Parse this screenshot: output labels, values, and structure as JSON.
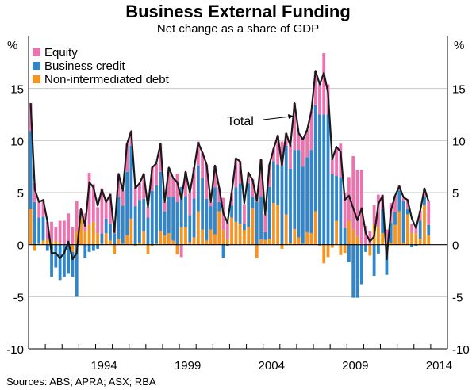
{
  "chart_data": {
    "type": "bar",
    "stacked": true,
    "title": "Business External Funding",
    "subtitle": "Net change as a share of GDP",
    "ylabel_left": "%",
    "ylabel_right": "%",
    "ylim": [
      -10,
      20
    ],
    "yticks": [
      -10,
      -5,
      0,
      5,
      10,
      15
    ],
    "xlim": [
      1990,
      2015
    ],
    "xtick_labels": [
      "1994",
      "1999",
      "2004",
      "2009",
      "2014"
    ],
    "grid": true,
    "legend_position": "top-left",
    "frequency": "quarterly",
    "start": "1990 Q1",
    "end": "2013 Q4",
    "source": "Sources: ABS; APRA; ASX; RBA",
    "annotation": "Total",
    "colors": {
      "equity": "#ef72b0",
      "credit": "#2f86cb",
      "debt": "#f7941d",
      "total": "#1a1a1a"
    },
    "series": [
      {
        "name": "Equity",
        "key": "equity",
        "values": [
          2.7,
          1.8,
          1.6,
          1.6,
          1.7,
          1.9,
          1.3,
          2.1,
          2.3,
          3.0,
          1.7,
          2.9,
          0.8,
          1.7,
          5.0,
          3.6,
          2.5,
          4.3,
          1.8,
          2.9,
          0.9,
          2.2,
          1.45,
          2.7,
          1.4,
          1.8,
          1.6,
          2.4,
          1.0,
          2.3,
          2.1,
          2.7,
          0.9,
          2.8,
          1.8,
          2.7,
          -1.2,
          2.35,
          2.15,
          3.0,
          2.3,
          2.45,
          3.3,
          0.4,
          2.1,
          1.4,
          3.1,
          1.7,
          1.2,
          2.8,
          2.1,
          1.9,
          1.0,
          1.7,
          0.8,
          3.55,
          1.7,
          2.15,
          1.25,
          2.8,
          2.3,
          1.2,
          2.3,
          4.5,
          1.6,
          2.8,
          2.6,
          3.7,
          3.3,
          2.9,
          5.9,
          2.9,
          1.5,
          2.8,
          3.2,
          3.4,
          4.2,
          7.05,
          6.4,
          7.1,
          1.8,
          1.3,
          1.8,
          3.1,
          1.4,
          1.05,
          1.9,
          1.6,
          0.5,
          0.3,
          0.9,
          0.85,
          0.55,
          0.95,
          0.8,
          2.3
        ]
      },
      {
        "name": "Business credit",
        "key": "credit",
        "values": [
          7.5,
          4.1,
          2.5,
          2.3,
          -0.6,
          -3.1,
          -2.2,
          -3.4,
          -3.1,
          -2.8,
          -2.4,
          -5.0,
          0,
          -1.3,
          -0.7,
          -0.6,
          -0.4,
          1.0,
          1.4,
          1.6,
          1.1,
          4.0,
          3.65,
          6.1,
          7.0,
          3.7,
          4.1,
          3.1,
          2.6,
          5.15,
          5.6,
          5.7,
          2.3,
          3.5,
          4.2,
          4.1,
          3.9,
          2.95,
          2.6,
          3.75,
          4.4,
          4.95,
          4.0,
          2.25,
          4.5,
          0.9,
          -1.3,
          -0.1,
          1.2,
          3.3,
          3.9,
          0.6,
          4.2,
          1.1,
          4.1,
          4.15,
          0.75,
          5.0,
          4.0,
          3.9,
          7.6,
          6.6,
          7.1,
          7.6,
          8.4,
          7.4,
          7.2,
          8.0,
          10.2,
          12.5,
          12.5,
          12.5,
          6.75,
          4.3,
          6.5,
          1.6,
          -1.7,
          -5.1,
          -5.1,
          -3.8,
          -0.7,
          0,
          -3.0,
          -0.85,
          2.3,
          -2.9,
          1.9,
          1.2,
          2.0,
          4.0,
          0.5,
          -0.25,
          -0.1,
          1.75,
          0.8,
          1.0
        ]
      },
      {
        "name": "Non-intermediated debt",
        "key": "debt",
        "values": [
          3.4,
          -0.6,
          0.1,
          0.4,
          0.5,
          0.3,
          0.4,
          0.2,
          0,
          0,
          -0.7,
          1.3,
          2.6,
          1.3,
          1.9,
          2.2,
          1.1,
          0.1,
          1.1,
          0.4,
          -0.9,
          0.55,
          0.1,
          0.9,
          2.5,
          -0.1,
          0.2,
          1.3,
          -0.9,
          -0.1,
          0.1,
          1.3,
          0.9,
          1.1,
          0.4,
          -0.95,
          1.65,
          1.7,
          0.25,
          0.7,
          3.2,
          1.45,
          0.4,
          1.45,
          1.0,
          3.2,
          1.4,
          0.5,
          2.6,
          2.2,
          2.0,
          1.4,
          1.7,
          3.5,
          -1.3,
          0.5,
          0.45,
          0.55,
          4.0,
          3.8,
          -0.4,
          2.9,
          0.2,
          1.5,
          0.7,
          0.1,
          1.2,
          1.1,
          3.2,
          -0.1,
          -1.8,
          -1.2,
          -0.3,
          2.3,
          -1.0,
          -0.8,
          2.3,
          1.45,
          0.8,
          0.1,
          0,
          -1.05,
          2.0,
          1.7,
          1.1,
          0.4,
          0.2,
          1.9,
          3.2,
          0.2,
          2.9,
          1.15,
          1.1,
          0.55,
          3.8,
          0.9
        ]
      },
      {
        "name": "Total",
        "key": "total",
        "type": "line",
        "values": [
          13.6,
          5.3,
          4.1,
          4.3,
          2.2,
          -0.8,
          -0.8,
          -1.3,
          -0.8,
          0.3,
          -1.4,
          -0.8,
          3.4,
          1.8,
          6.0,
          5.5,
          3.75,
          5.3,
          4.1,
          4.8,
          1.2,
          6.8,
          5.2,
          9.7,
          10.9,
          5.4,
          5.9,
          6.8,
          3.6,
          7.4,
          7.8,
          9.7,
          4.1,
          7.4,
          6.4,
          6.0,
          4.4,
          7.0,
          5.0,
          7.3,
          9.8,
          8.85,
          7.7,
          4.1,
          7.6,
          5.5,
          3.0,
          2.1,
          5.0,
          8.3,
          8.0,
          4.0,
          6.9,
          6.2,
          4.2,
          8.2,
          2.9,
          7.7,
          9.2,
          10.5,
          7.6,
          10.7,
          9.5,
          13.6,
          10.7,
          10.1,
          11.0,
          12.8,
          16.7,
          15.4,
          16.5,
          14.6,
          8.2,
          9.4,
          8.9,
          4.3,
          4.7,
          3.5,
          2.35,
          3.5,
          1.1,
          0.3,
          0.8,
          3.9,
          4.7,
          -1.4,
          3.25,
          4.7,
          5.6,
          4.55,
          4.3,
          2.5,
          1.6,
          3.25,
          5.4,
          4.15
        ]
      }
    ]
  }
}
